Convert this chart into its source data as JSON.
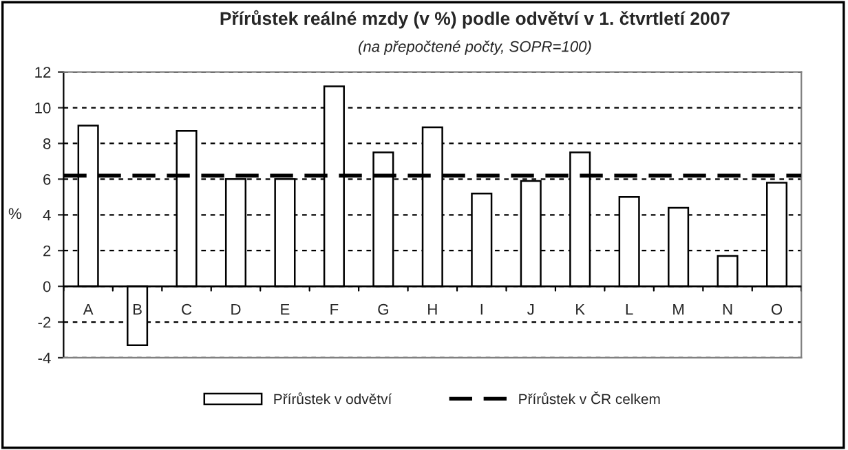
{
  "chart_data": {
    "type": "bar",
    "title": "Přírůstek reálné mzdy (v %) podle odvětví v 1. čtvrtletí 2007",
    "subtitle": "(na přepočtené počty, SOPR=100)",
    "ylabel": "%",
    "categories": [
      "A",
      "B",
      "C",
      "D",
      "E",
      "F",
      "G",
      "H",
      "I",
      "J",
      "K",
      "L",
      "M",
      "N",
      "O"
    ],
    "series": [
      {
        "name": "Přírůstek v odvětví",
        "color": "#ffffff",
        "values": [
          9.0,
          -3.3,
          8.7,
          6.0,
          6.0,
          11.2,
          7.5,
          8.9,
          5.2,
          5.9,
          7.5,
          5.0,
          4.4,
          1.7,
          5.8
        ]
      }
    ],
    "ref_lines": [
      {
        "axis": "y",
        "value": 6.2,
        "label": "Přírůstek v ČR celkem",
        "color": "#000000",
        "line_style": "dashed"
      }
    ],
    "ylim": [
      -4,
      12
    ],
    "yticks": [
      -4,
      -2,
      0,
      2,
      4,
      6,
      8,
      10,
      12
    ],
    "grid": "y",
    "legend": "bottom"
  }
}
